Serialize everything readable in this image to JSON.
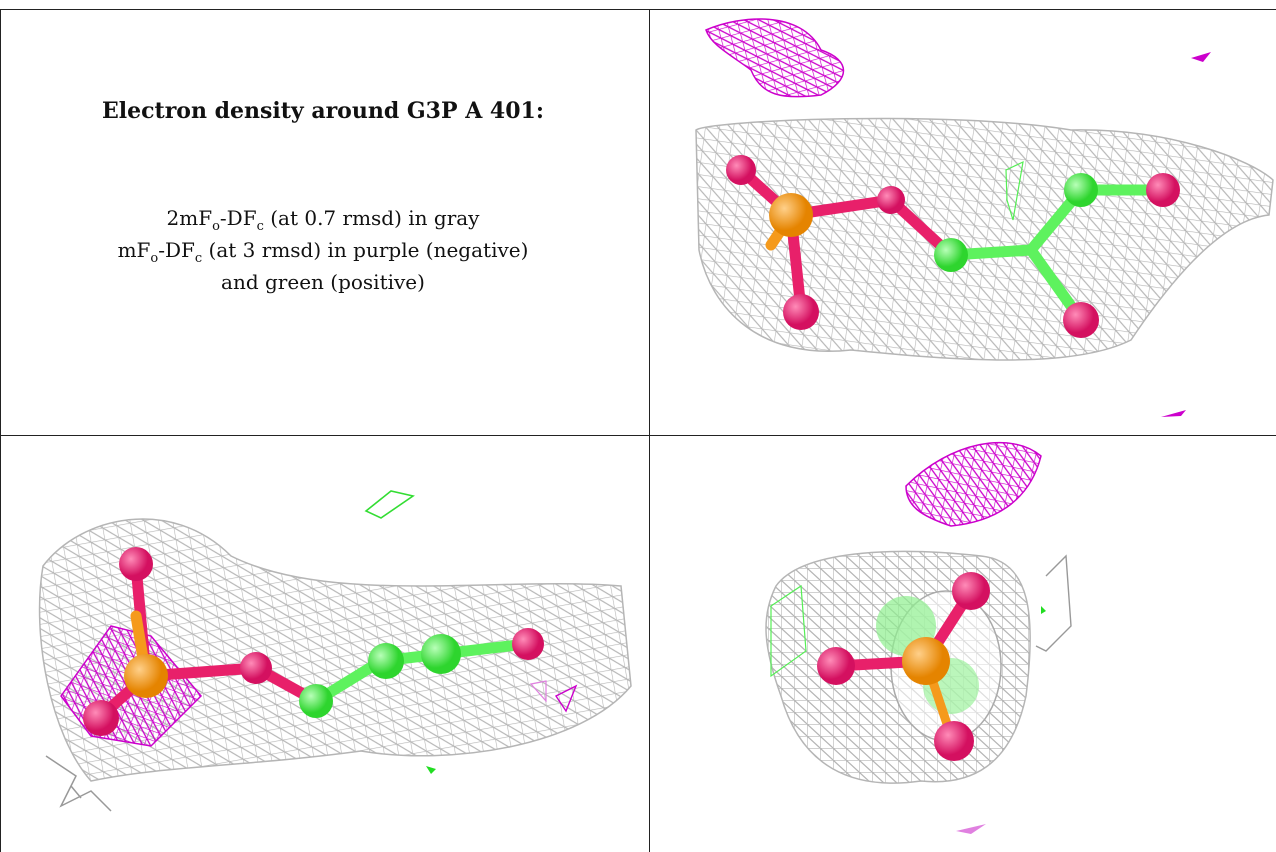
{
  "caption": {
    "title": "Electron density around G3P A 401:",
    "line1": {
      "a": "2mF",
      "a_sub": "o",
      "b": "-DF",
      "b_sub": "c",
      "rest": " (at 0.7 rmsd) in gray"
    },
    "line2": {
      "a": "mF",
      "a_sub": "o",
      "b": "-DF",
      "b_sub": "c",
      "rest": " (at 3 rmsd) in purple (negative)"
    },
    "line3": "and green (positive)"
  },
  "colors": {
    "mesh_2fofc": "#b8b8b8",
    "mesh_negative": "#cc00cc",
    "mesh_positive": "#33ee33",
    "phosphorus": "#f59a1c",
    "oxygen": "#e8206a",
    "carbon": "#5ef25e"
  },
  "panels": [
    "view-top-right",
    "view-bottom-left",
    "view-bottom-right"
  ]
}
